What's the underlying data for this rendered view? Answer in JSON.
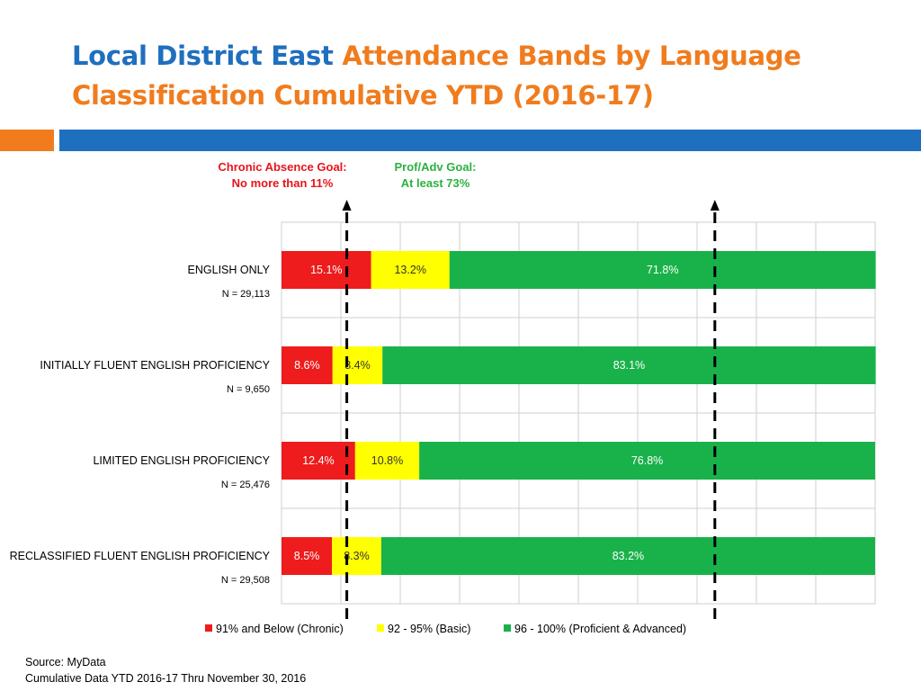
{
  "title": {
    "part1": "Local District East",
    "part2": "Attendance Bands by Language Classification Cumulative YTD (2016-17)",
    "colors": {
      "part1": "#1f6fbf",
      "part2": "#f07c1e"
    }
  },
  "goals": {
    "chronic": {
      "line1": "Chronic Absence Goal:",
      "line2": "No more than 11%",
      "value": 11,
      "color": "#e8141b"
    },
    "prof": {
      "line1": "Prof/Adv Goal:",
      "line2": "At least 73%",
      "value": 73,
      "color": "#2bb140"
    }
  },
  "chart_data": {
    "type": "bar",
    "orientation": "horizontal",
    "stacked": true,
    "xlim": [
      0,
      100
    ],
    "grid": true,
    "legend_position": "bottom",
    "categories": [
      "ENGLISH ONLY",
      "INITIALLY FLUENT ENGLISH PROFICIENCY",
      "LIMITED ENGLISH PROFICIENCY",
      "RECLASSIFIED FLUENT ENGLISH PROFICIENCY"
    ],
    "n_labels": [
      "N = 29,113",
      "N = 9,650",
      "N = 25,476",
      "N = 29,508"
    ],
    "series": [
      {
        "name": "91% and Below (Chronic)",
        "color": "#ee1c1c",
        "values": [
          15.1,
          8.6,
          12.4,
          8.5
        ],
        "labels": [
          "15.1%",
          "8.6%",
          "12.4%",
          "8.5%"
        ]
      },
      {
        "name": "92 - 95% (Basic)",
        "color": "#ffff00",
        "values": [
          13.2,
          8.4,
          10.8,
          8.3
        ],
        "labels": [
          "13.2%",
          "8.4%",
          "10.8%",
          "8.3%"
        ]
      },
      {
        "name": "96 - 100% (Proficient & Advanced)",
        "color": "#19b24a",
        "values": [
          71.8,
          83.1,
          76.8,
          83.2
        ],
        "labels": [
          "71.8%",
          "83.1%",
          "76.8%",
          "83.2%"
        ]
      }
    ]
  },
  "source": {
    "line1": "Source: MyData",
    "line2": "Cumulative Data  YTD 2016-17 Thru November 30, 2016"
  }
}
